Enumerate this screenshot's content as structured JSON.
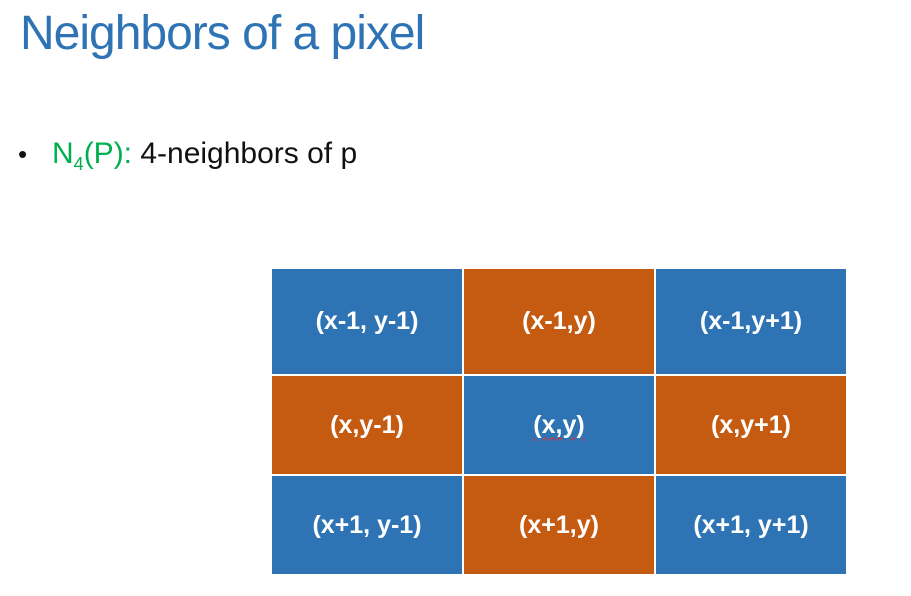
{
  "slide": {
    "title": "Neighbors of a pixel",
    "bullet": {
      "term_main": "N",
      "term_sub": "4",
      "term_rest": "(P):",
      "text": " 4-neighbors of p"
    }
  },
  "colors": {
    "title": "#2e74b5",
    "term": "#00b050",
    "cell_blue": "#2e74b5",
    "cell_orange": "#c55a11",
    "cell_text": "#ffffff"
  },
  "grid": {
    "rows": [
      [
        "(x-1, y-1)",
        "(x-1,y)",
        "(x-1,y+1)"
      ],
      [
        "(x,y-1)",
        "(x,y)",
        "(x,y+1)"
      ],
      [
        "(x+1, y-1)",
        "(x+1,y)",
        "(x+1, y+1)"
      ]
    ]
  }
}
